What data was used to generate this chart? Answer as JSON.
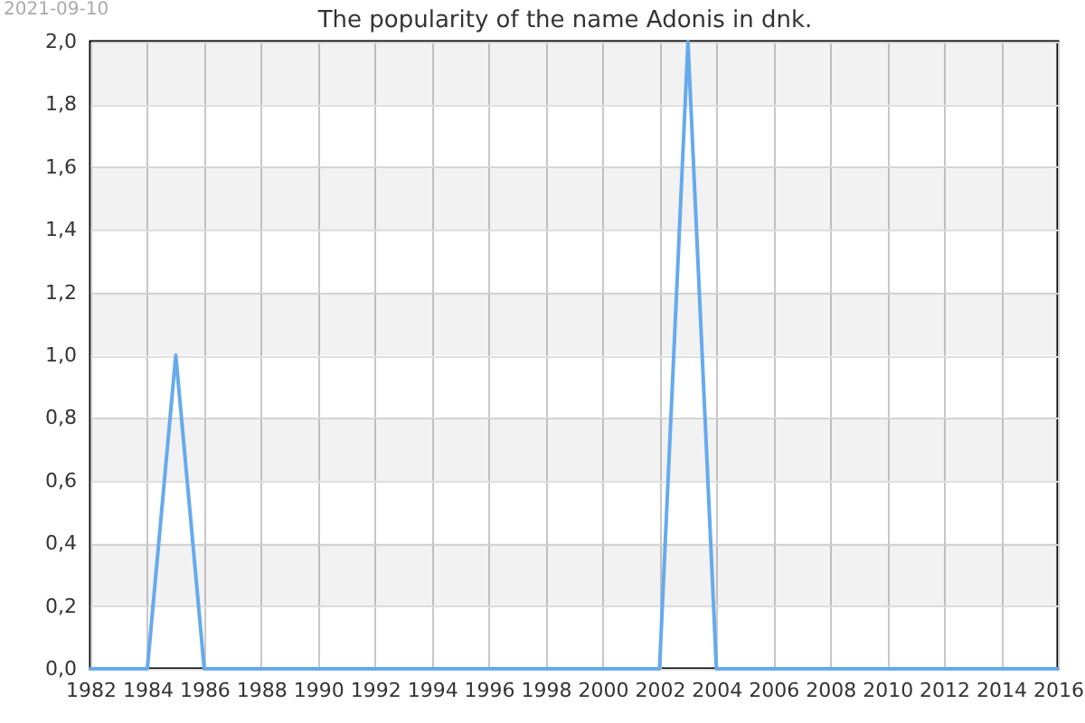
{
  "chart_data": {
    "type": "line",
    "title": "The popularity of the name Adonis in dnk.",
    "annotations": [
      "2021-09-10"
    ],
    "x": [
      1982,
      1983,
      1984,
      1985,
      1986,
      1987,
      1988,
      1989,
      1990,
      1991,
      1992,
      1993,
      1994,
      1995,
      1996,
      1997,
      1998,
      1999,
      2000,
      2001,
      2002,
      2003,
      2004,
      2005,
      2006,
      2007,
      2008,
      2009,
      2010,
      2011,
      2012,
      2013,
      2014,
      2015,
      2016
    ],
    "series": [
      {
        "color": "#66aaee",
        "values": [
          0,
          0,
          0,
          1,
          0,
          0,
          0,
          0,
          0,
          0,
          0,
          0,
          0,
          0,
          0,
          0,
          0,
          0,
          0,
          0,
          0,
          2,
          0,
          0,
          0,
          0,
          0,
          0,
          0,
          0,
          0,
          0,
          0,
          0,
          0
        ]
      }
    ],
    "xlim": [
      1982,
      2016
    ],
    "xticks": [
      1982,
      1984,
      1986,
      1988,
      1990,
      1992,
      1994,
      1996,
      1998,
      2000,
      2002,
      2004,
      2006,
      2008,
      2010,
      2012,
      2014,
      2016
    ],
    "ylim": [
      0,
      2
    ],
    "yticks": [
      {
        "value": 0,
        "label": "0,0"
      },
      {
        "value": 0.2,
        "label": "0,2"
      },
      {
        "value": 0.4,
        "label": "0,4"
      },
      {
        "value": 0.6,
        "label": "0,6"
      },
      {
        "value": 0.8,
        "label": "0,8"
      },
      {
        "value": 1,
        "label": "1,0"
      },
      {
        "value": 1.2,
        "label": "1,2"
      },
      {
        "value": 1.4,
        "label": "1,4"
      },
      {
        "value": 1.6,
        "label": "1,6"
      },
      {
        "value": 1.8,
        "label": "1,8"
      },
      {
        "value": 2,
        "label": "2,0"
      }
    ],
    "grid": true,
    "bands": [
      {
        "axis": "y",
        "from": 0.2,
        "to": 0.4,
        "color": "#f2f2f2"
      },
      {
        "axis": "y",
        "from": 0.6,
        "to": 0.8,
        "color": "#f2f2f2"
      },
      {
        "axis": "y",
        "from": 1.0,
        "to": 1.2,
        "color": "#f2f2f2"
      },
      {
        "axis": "y",
        "from": 1.4,
        "to": 1.6,
        "color": "#f2f2f2"
      },
      {
        "axis": "y",
        "from": 1.8,
        "to": 2.0,
        "color": "#f2f2f2"
      }
    ]
  }
}
